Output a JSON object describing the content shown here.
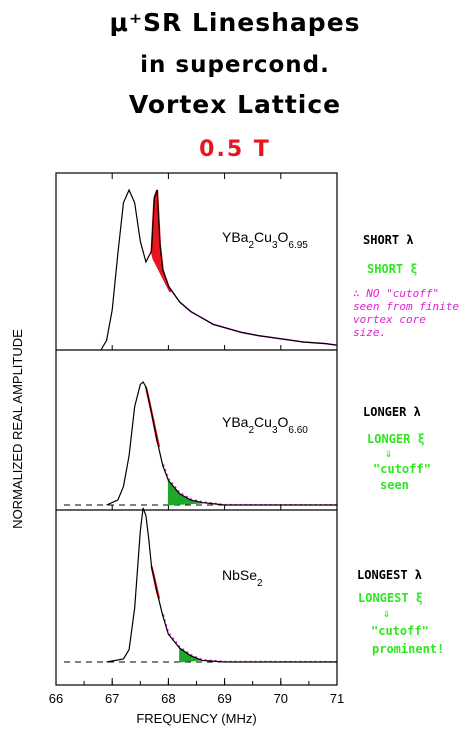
{
  "title": {
    "line1": "μ⁺SR Lineshapes",
    "line2": "in supercond.",
    "line3": "Vortex Lattice",
    "field": "0.5 T"
  },
  "annotations": [
    {
      "sample": "YBa2Cu3O6.95",
      "lambda_label": "SHORT λ",
      "xi_label": "SHORT ξ",
      "comment": "∴ NO \"cutoff\" seen from finite vortex core size."
    },
    {
      "sample": "YBa2Cu3O6.60",
      "lambda_label": "LONGER λ",
      "xi_label": "LONGER ξ",
      "arrow": "⇓",
      "cutoff": "\"cutoff\"",
      "status": "seen"
    },
    {
      "sample": "NbSe2",
      "lambda_label": "LONGEST λ",
      "xi_label": "LONGEST ξ",
      "arrow": "⇓",
      "cutoff": "\"cutoff\"",
      "status": "prominent!"
    }
  ],
  "colors": {
    "title_field": "#e8141e",
    "red_fill": "#e8141e",
    "green_fill": "#1ea82a",
    "green_text": "#2ee81e",
    "magenta_fit": "#e020d8"
  },
  "chart_data": {
    "type": "line",
    "xlabel": "FREQUENCY (MHz)",
    "ylabel": "NORMALIZED REAL AMPLITUDE",
    "xlim": [
      66,
      71
    ],
    "xticks": [
      "66",
      "67",
      "68",
      "69",
      "70",
      "71"
    ],
    "panels": [
      {
        "sample_label": "YBa₂Cu₃O₆.₉₅",
        "sample_sub": {
          "base": "YBa",
          "parts": [
            [
              "2",
              "Cu"
            ],
            [
              "3",
              "O"
            ],
            [
              "6.95",
              ""
            ]
          ]
        },
        "x": [
          66.8,
          66.9,
          67.0,
          67.1,
          67.2,
          67.3,
          67.4,
          67.5,
          67.6,
          67.7,
          67.75,
          67.8,
          67.85,
          67.9,
          68.0,
          68.2,
          68.4,
          68.6,
          68.8,
          69.0,
          69.3,
          69.6,
          70.0,
          70.4,
          70.8,
          71.0
        ],
        "y": [
          0.0,
          0.06,
          0.25,
          0.6,
          0.92,
          1.0,
          0.92,
          0.68,
          0.55,
          0.62,
          0.95,
          1.0,
          0.66,
          0.5,
          0.4,
          0.3,
          0.24,
          0.2,
          0.16,
          0.14,
          0.11,
          0.09,
          0.07,
          0.05,
          0.04,
          0.03
        ],
        "red_region_x": [
          67.7,
          68.0
        ],
        "fit_color": "magenta"
      },
      {
        "sample_label": "YBa₂Cu₃O₆.₆₀",
        "sample_sub": {
          "base": "YBa",
          "parts": [
            [
              "2",
              "Cu"
            ],
            [
              "3",
              "O"
            ],
            [
              "6.60",
              ""
            ]
          ]
        },
        "x": [
          66.9,
          67.1,
          67.2,
          67.3,
          67.4,
          67.5,
          67.55,
          67.6,
          67.7,
          67.8,
          67.9,
          68.0,
          68.2,
          68.4,
          68.6,
          68.8,
          69.0,
          69.5,
          70.0,
          71.0
        ],
        "y": [
          0.0,
          0.04,
          0.15,
          0.4,
          0.8,
          0.98,
          1.0,
          0.96,
          0.75,
          0.52,
          0.32,
          0.2,
          0.09,
          0.04,
          0.02,
          0.01,
          0.0,
          0.0,
          0.0,
          0.0
        ],
        "red_region_x": [
          67.6,
          67.8
        ],
        "green_region_x": [
          68.0,
          68.6
        ],
        "fit_color": "magenta"
      },
      {
        "sample_label": "NbSe₂",
        "sample_sub": {
          "base": "NbSe",
          "parts": [
            [
              "2",
              ""
            ]
          ]
        },
        "x": [
          66.9,
          67.2,
          67.3,
          67.4,
          67.5,
          67.55,
          67.6,
          67.65,
          67.7,
          67.8,
          67.9,
          68.0,
          68.2,
          68.4,
          68.6,
          69.0,
          70.0,
          71.0
        ],
        "y": [
          0.0,
          0.02,
          0.08,
          0.35,
          0.85,
          1.0,
          0.95,
          0.8,
          0.62,
          0.45,
          0.3,
          0.18,
          0.09,
          0.04,
          0.01,
          0.0,
          0.0,
          0.0
        ],
        "red_region_x": [
          67.7,
          67.8
        ],
        "green_region_x": [
          68.2,
          68.6
        ],
        "fit_color": "magenta"
      }
    ]
  }
}
